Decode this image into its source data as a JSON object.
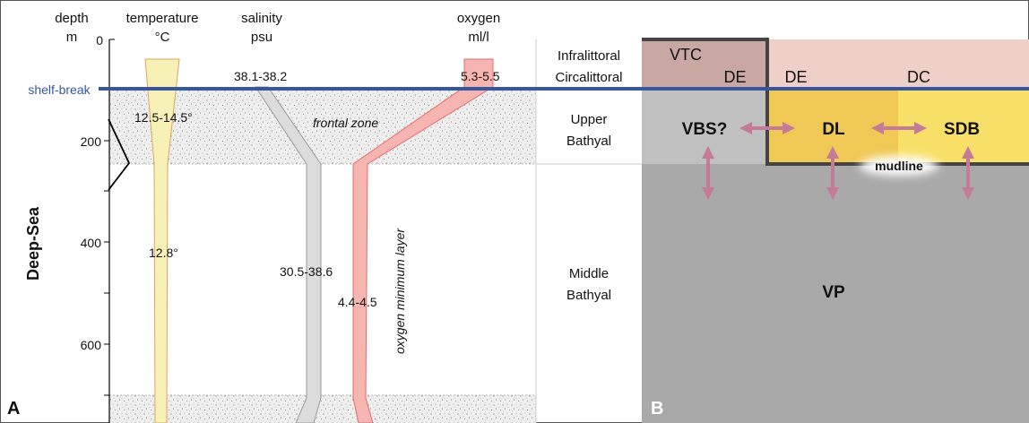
{
  "panel_a": {
    "letter": "A",
    "headers": {
      "depth": "depth",
      "depth_unit": "m",
      "temperature": "temperature",
      "temperature_unit": "°C",
      "salinity": "salinity",
      "salinity_unit": "psu",
      "oxygen": "oxygen",
      "oxygen_unit": "ml/l"
    },
    "left_labels": {
      "shelf_break": "shelf-break",
      "deep_sea": "Deep-Sea"
    },
    "depth_ticks": [
      "0",
      "200",
      "400",
      "600"
    ],
    "values": {
      "temp_shallow": "12.5-14.5°",
      "temp_deep": "12.8°",
      "sal_top": "38.1-38.2",
      "sal_deep": "30.5-38.6",
      "oxy_top": "5.3-5.5",
      "oxy_deep": "4.4-4.5"
    },
    "annotations": {
      "frontal_zone": "frontal zone",
      "oml": "oxygen minimum layer"
    }
  },
  "zones": {
    "infralittoral": "Infralittoral",
    "circalittoral": "Circalittoral",
    "upper_bathyal_1": "Upper",
    "upper_bathyal_2": "Bathyal",
    "middle_bathyal_1": "Middle",
    "middle_bathyal_2": "Bathyal"
  },
  "panel_b": {
    "letter": "B",
    "labels": {
      "vtc": "VTC",
      "de_left": "DE",
      "de_right": "DE",
      "dc": "DC",
      "vbs": "VBS?",
      "dl": "DL",
      "sdb": "SDB",
      "mudline": "mudline",
      "vp": "VP"
    },
    "colors": {
      "vtc": "#c9a8a4",
      "dc": "#efd0c8",
      "vbs": "#c0c0c0",
      "dl": "#efc855",
      "sdb": "#f8e068",
      "vp": "#a9a9a9",
      "arrow": "#c37b98",
      "shelf_line": "#3657a0"
    }
  }
}
